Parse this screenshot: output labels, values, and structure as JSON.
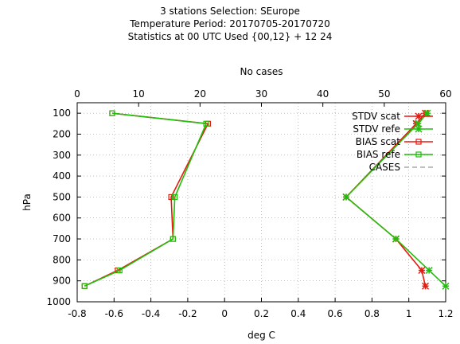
{
  "header": {
    "line1": "3 stations Selection: SEurope",
    "line2": "Temperature  Period: 20170705-20170720",
    "line3": "Statistics at 00 UTC  Used {00,12} + 12 24"
  },
  "chart_data": {
    "type": "line",
    "orientation": "vertical-profile",
    "xlabel": "deg C",
    "ylabel": "hPa",
    "x2label": "No cases",
    "xlim": [
      -0.8,
      1.2
    ],
    "x2lim": [
      0,
      60
    ],
    "ylim": [
      1000,
      50
    ],
    "y_inverted": true,
    "grid": true,
    "legend_position": "top-right",
    "xticks": [
      -0.8,
      -0.6,
      -0.4,
      -0.2,
      0,
      0.2,
      0.4,
      0.6,
      0.8,
      1,
      1.2
    ],
    "x2ticks": [
      0,
      10,
      20,
      30,
      40,
      50,
      60
    ],
    "yticks": [
      100,
      200,
      300,
      400,
      500,
      600,
      700,
      800,
      900,
      1000
    ],
    "levels": [
      100,
      150,
      500,
      700,
      850,
      925
    ],
    "series": [
      {
        "name": "STDV scat",
        "color": "#e8190c",
        "marker": "asterisk",
        "values": [
          1.09,
          1.04,
          0.66,
          0.93,
          1.07,
          1.09
        ]
      },
      {
        "name": "STDV refe",
        "color": "#1fbf0a",
        "marker": "asterisk",
        "values": [
          1.1,
          1.05,
          0.66,
          0.93,
          1.11,
          1.2
        ]
      },
      {
        "name": "BIAS scat",
        "color": "#e8190c",
        "marker": "square",
        "values": [
          -0.61,
          -0.09,
          -0.29,
          -0.28,
          -0.58,
          -0.76
        ]
      },
      {
        "name": "BIAS refe",
        "color": "#1fbf0a",
        "marker": "square",
        "values": [
          -0.61,
          -0.1,
          -0.27,
          -0.28,
          -0.57,
          -0.76
        ]
      },
      {
        "name": "CASES",
        "color": "#aaaaaa",
        "marker": "none",
        "dashed": true,
        "values": []
      }
    ]
  }
}
